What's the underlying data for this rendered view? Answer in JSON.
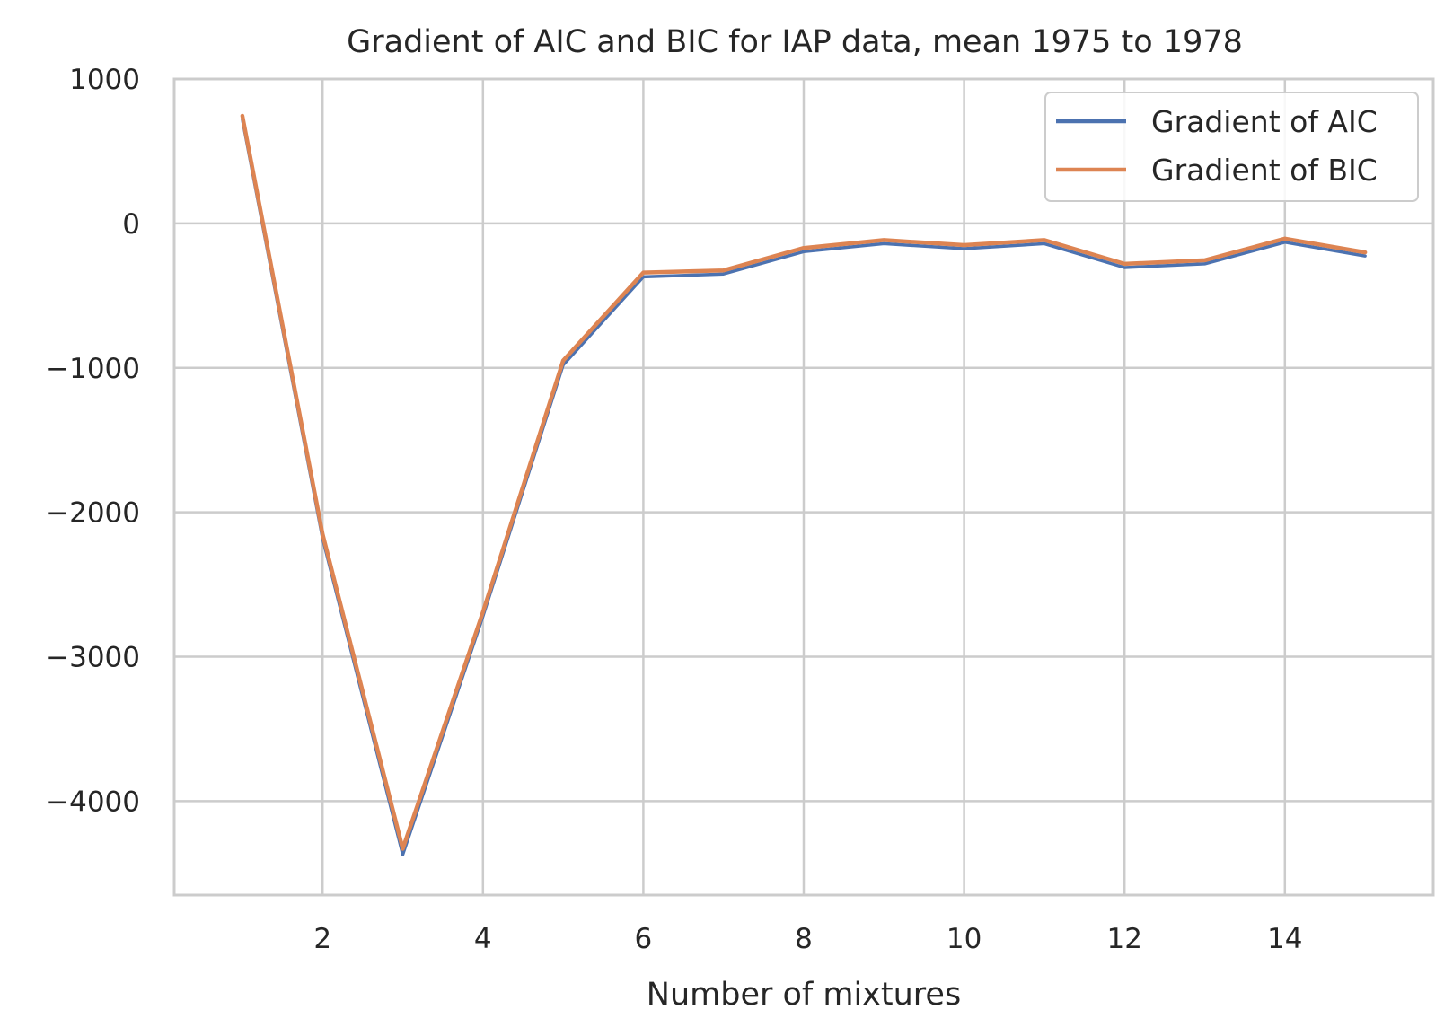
{
  "chart_data": {
    "type": "line",
    "title": "Gradient of AIC and BIC for IAP data, mean 1975 to 1978",
    "xlabel": "Number of mixtures",
    "ylabel": "",
    "xlim": [
      0.15,
      15.85
    ],
    "ylim": [
      -4650,
      1000
    ],
    "xticks": [
      2,
      4,
      6,
      8,
      10,
      12,
      14
    ],
    "xtick_labels": [
      "2",
      "4",
      "6",
      "8",
      "10",
      "12",
      "14"
    ],
    "yticks": [
      1000,
      0,
      -1000,
      -2000,
      -3000,
      -4000
    ],
    "ytick_labels": [
      "1000",
      "0",
      "−1000",
      "−2000",
      "−3000",
      "−4000"
    ],
    "grid": true,
    "legend_position": "top-right",
    "x": [
      1,
      2,
      3,
      4,
      5,
      6,
      7,
      8,
      9,
      10,
      11,
      12,
      13,
      14,
      15
    ],
    "series": [
      {
        "name": "Gradient of AIC",
        "color": "#4c72b0",
        "values": [
          720,
          -2180,
          -4370,
          -2720,
          -980,
          -370,
          -350,
          -195,
          -140,
          -175,
          -140,
          -305,
          -280,
          -130,
          -225
        ]
      },
      {
        "name": "Gradient of BIC",
        "color": "#dd8452",
        "values": [
          745,
          -2150,
          -4330,
          -2690,
          -950,
          -340,
          -325,
          -170,
          -115,
          -150,
          -115,
          -280,
          -255,
          -105,
          -200
        ]
      }
    ]
  }
}
